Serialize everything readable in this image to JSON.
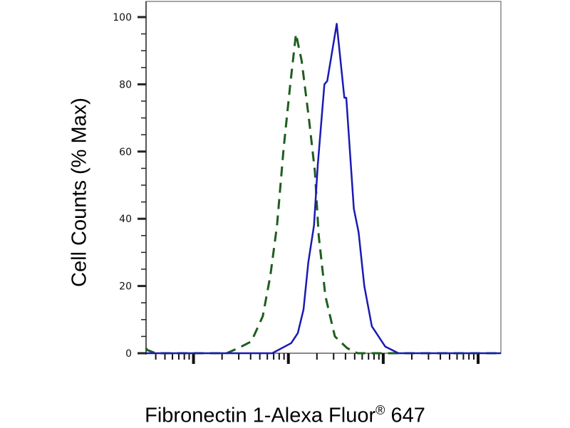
{
  "chart_data": {
    "type": "line",
    "title": "",
    "xlabel_main": "Fibronectin 1-Alexa Fluor",
    "xlabel_reg": "®",
    "xlabel_tail": " 647",
    "ylabel": "Cell Counts (% Max)",
    "xscale": "log",
    "x_units": "log10 decades (unlabeled axis)",
    "xlim_log10": [
      0.5,
      4.24
    ],
    "x_major_decades": [
      1,
      2,
      3,
      4
    ],
    "ylim": [
      0,
      100
    ],
    "yticks": [
      0,
      20,
      40,
      60,
      80,
      100
    ],
    "ytick_labels": [
      "0",
      "20",
      "40",
      "60",
      "80",
      "100"
    ],
    "grid": false,
    "legend": "none",
    "series": [
      {
        "style": "dashed",
        "color": "#1e5e1e",
        "x_log10": [
          0.5,
          0.51,
          0.6,
          1.35,
          1.47,
          1.61,
          1.73,
          1.81,
          1.88,
          1.95,
          2.02,
          2.08,
          2.14,
          2.22,
          2.28,
          2.32,
          2.39,
          2.49,
          2.62,
          2.73,
          4.24
        ],
        "y": [
          1.5,
          1,
          0,
          0,
          1.5,
          3.5,
          11,
          23,
          38,
          61,
          80,
          95,
          87,
          69,
          54,
          35,
          17,
          5,
          1.5,
          0,
          0
        ]
      },
      {
        "style": "solid",
        "color": "#1a1ab4",
        "x_log10": [
          0.5,
          1.83,
          2.03,
          2.1,
          2.16,
          2.21,
          2.27,
          2.31,
          2.38,
          2.41,
          2.51,
          2.59,
          2.61,
          2.69,
          2.74,
          2.8,
          2.88,
          3.02,
          3.16,
          4.24
        ],
        "y": [
          0,
          0,
          3,
          6,
          13,
          27,
          38,
          56,
          80,
          81,
          98,
          76,
          76,
          43,
          36,
          20,
          8,
          2,
          0,
          0
        ]
      }
    ]
  }
}
